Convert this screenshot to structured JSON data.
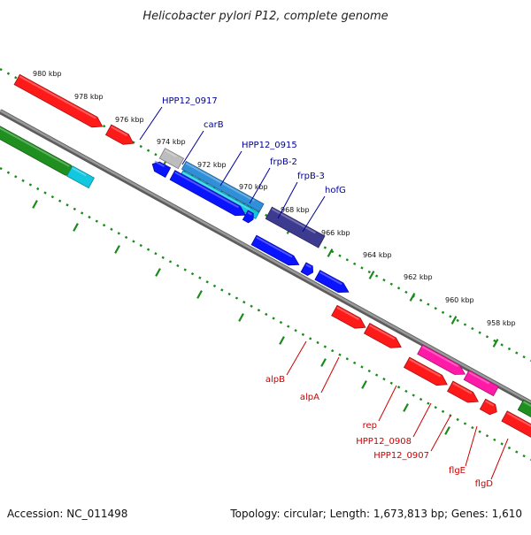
{
  "title": "Helicobacter pylori P12, complete genome",
  "footer": {
    "accession": "Accession: NC_011498",
    "summary": "Topology: circular; Length: 1,673,813 bp; Genes: 1,610"
  },
  "colors": {
    "upper_labels": "#00009a",
    "lower_labels": "#cc0000",
    "ticks": "#1a8a1a",
    "backbone": "#888888"
  },
  "ticks": [
    {
      "label": "980 kbp"
    },
    {
      "label": "978 kbp"
    },
    {
      "label": "976 kbp"
    },
    {
      "label": "974 kbp"
    },
    {
      "label": "972 kbp"
    },
    {
      "label": "970 kbp"
    },
    {
      "label": "968 kbp"
    },
    {
      "label": "966 kbp"
    },
    {
      "label": "964 kbp"
    },
    {
      "label": "962 kbp"
    },
    {
      "label": "960 kbp"
    },
    {
      "label": "958 kbp"
    }
  ],
  "upper_labels": [
    {
      "label": "HPP12_0917"
    },
    {
      "label": "carB"
    },
    {
      "label": "HPP12_0915"
    },
    {
      "label": "frpB-2"
    },
    {
      "label": "frpB-3"
    },
    {
      "label": "hofG"
    }
  ],
  "lower_labels": [
    {
      "label": "alpB"
    },
    {
      "label": "alpA"
    },
    {
      "label": "rep"
    },
    {
      "label": "HPP12_0908"
    },
    {
      "label": "HPP12_0907"
    },
    {
      "label": "flgE"
    },
    {
      "label": "flgD"
    }
  ],
  "features": [
    {
      "color": "#ff1a1a"
    },
    {
      "color": "#ff1a1a"
    },
    {
      "color": "#1f8f1f"
    },
    {
      "color": "#11c8e0"
    },
    {
      "color": "#bdbdbd"
    },
    {
      "color": "#2f8fd8"
    },
    {
      "color": "#11c8e0"
    },
    {
      "color": "#0a14ff"
    },
    {
      "color": "#0a14ff"
    },
    {
      "color": "#0a14ff"
    },
    {
      "color": "#3c3b8f"
    },
    {
      "color": "#0a14ff"
    },
    {
      "color": "#0a14ff"
    },
    {
      "color": "#0a14ff"
    },
    {
      "color": "#ff1a1a"
    },
    {
      "color": "#ff1a1a"
    },
    {
      "color": "#ff1a1a"
    },
    {
      "color": "#ff1a1a"
    },
    {
      "color": "#ff1a1a"
    },
    {
      "color": "#ff1a1a"
    },
    {
      "color": "#ff1aa8"
    },
    {
      "color": "#ff1aa8"
    },
    {
      "color": "#1f8f1f"
    },
    {
      "color": "#1f8f1f"
    }
  ]
}
